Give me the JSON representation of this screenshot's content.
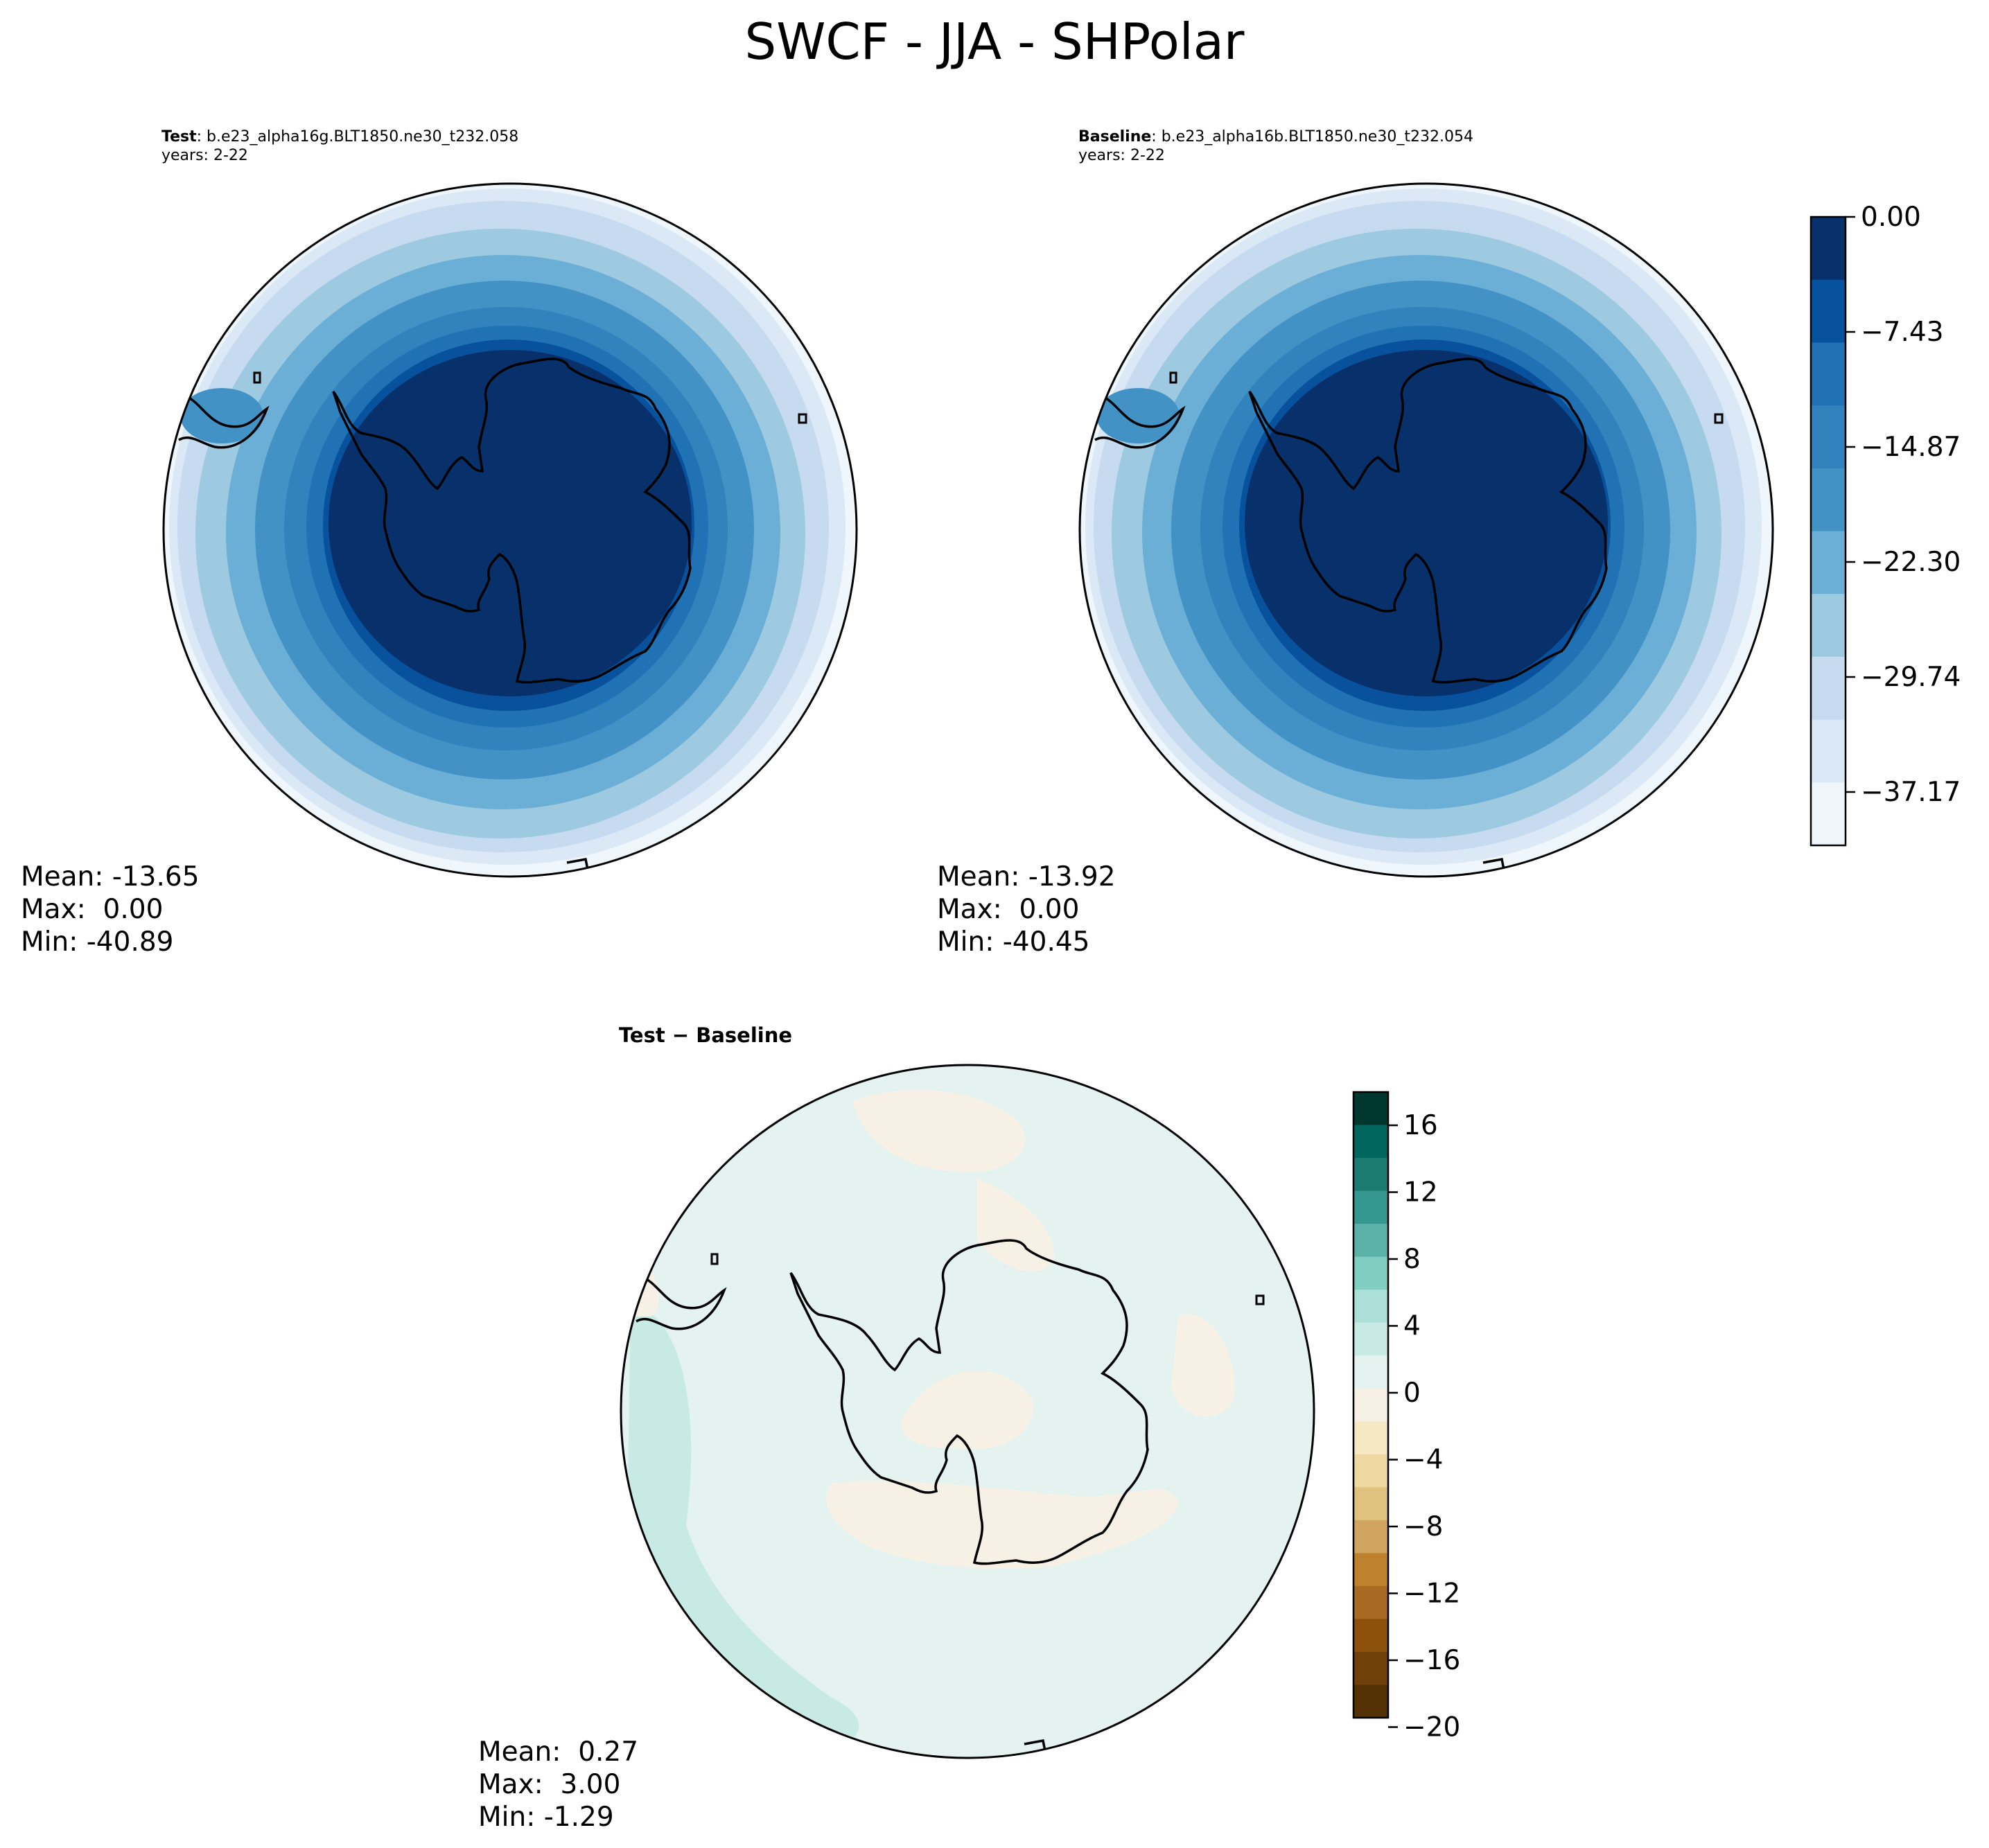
{
  "figure": {
    "title": "SWCF - JJA - SHPolar"
  },
  "panels": [
    {
      "id": "test",
      "label": "Test",
      "case": ": b.e23_alpha16g.BLT1850.ne30_t232.058",
      "years": "years: 2-22",
      "stats": {
        "mean": "Mean: -13.65",
        "max": "Max:  0.00",
        "min": "Min: -40.89"
      }
    },
    {
      "id": "baseline",
      "label": "Baseline",
      "case": ": b.e23_alpha16b.BLT1850.ne30_t232.054",
      "years": "years: 2-22",
      "stats": {
        "mean": "Mean: -13.92",
        "max": "Max:  0.00",
        "min": "Min: -40.45"
      }
    },
    {
      "id": "difference",
      "label": "Test − Baseline",
      "stats": {
        "mean": "Mean:  0.27",
        "max": "Max:  3.00",
        "min": "Min: -1.29"
      }
    }
  ],
  "colorbars": {
    "main": {
      "tick_labels": [
        "0.00",
        "−7.43",
        "−14.87",
        "−22.30",
        "−29.74",
        "−37.17"
      ],
      "colors": [
        "#08306b",
        "#08519c",
        "#2171b5",
        "#3182bd",
        "#4292c6",
        "#6baed6",
        "#9ecae1",
        "#c6dbef",
        "#dbe9f6",
        "#eff6fc"
      ]
    },
    "diff": {
      "tick_labels": [
        "16",
        "12",
        "8",
        "4",
        "0",
        "−4",
        "−8",
        "−12",
        "−16",
        "−20"
      ],
      "colors": [
        "#00382f",
        "#01665e",
        "#1b7b71",
        "#35978f",
        "#5ab2a8",
        "#80cdc1",
        "#acdfd7",
        "#c7eae5",
        "#e4f2f0",
        "#f6f1e4",
        "#f6e8c3",
        "#efd7a2",
        "#dfc27d",
        "#d1a560",
        "#bf812d",
        "#a86a22",
        "#8c510a",
        "#6f400a",
        "#543005"
      ]
    }
  },
  "map": {
    "projection": "south-polar-stereographic",
    "region": "SHPolar",
    "coastline": "Antarctica"
  }
}
